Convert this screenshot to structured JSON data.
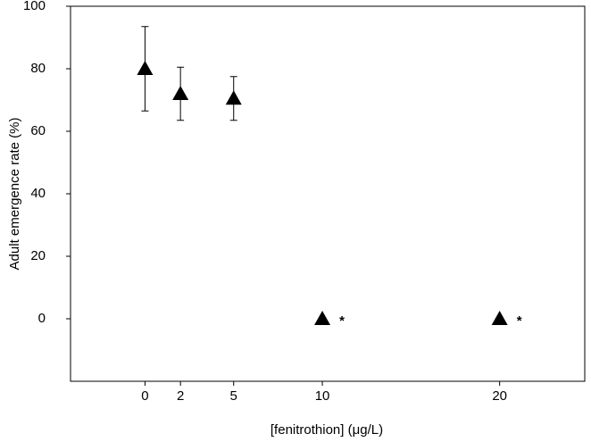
{
  "chart_data": {
    "type": "scatter",
    "xlabel": "[fenitrothion] (μg/L)",
    "ylabel": "Adult emergence rate (%)",
    "x": [
      0,
      2,
      5,
      10,
      20
    ],
    "series": [
      {
        "color": "#000000",
        "values": [
          80,
          72,
          70.5,
          0,
          0
        ],
        "errors": [
          13.5,
          8.5,
          7,
          null,
          null
        ]
      }
    ],
    "annotations": [
      {
        "text": "*",
        "x": 10,
        "y": 0
      },
      {
        "text": "*",
        "x": 20,
        "y": 0
      }
    ],
    "xlim": [
      -4.2,
      24.8
    ],
    "ylim": [
      -20,
      100
    ],
    "xticks": [
      0,
      2,
      5,
      10,
      20
    ],
    "yticks": [
      0,
      20,
      40,
      60,
      80,
      100
    ],
    "grid": false
  }
}
